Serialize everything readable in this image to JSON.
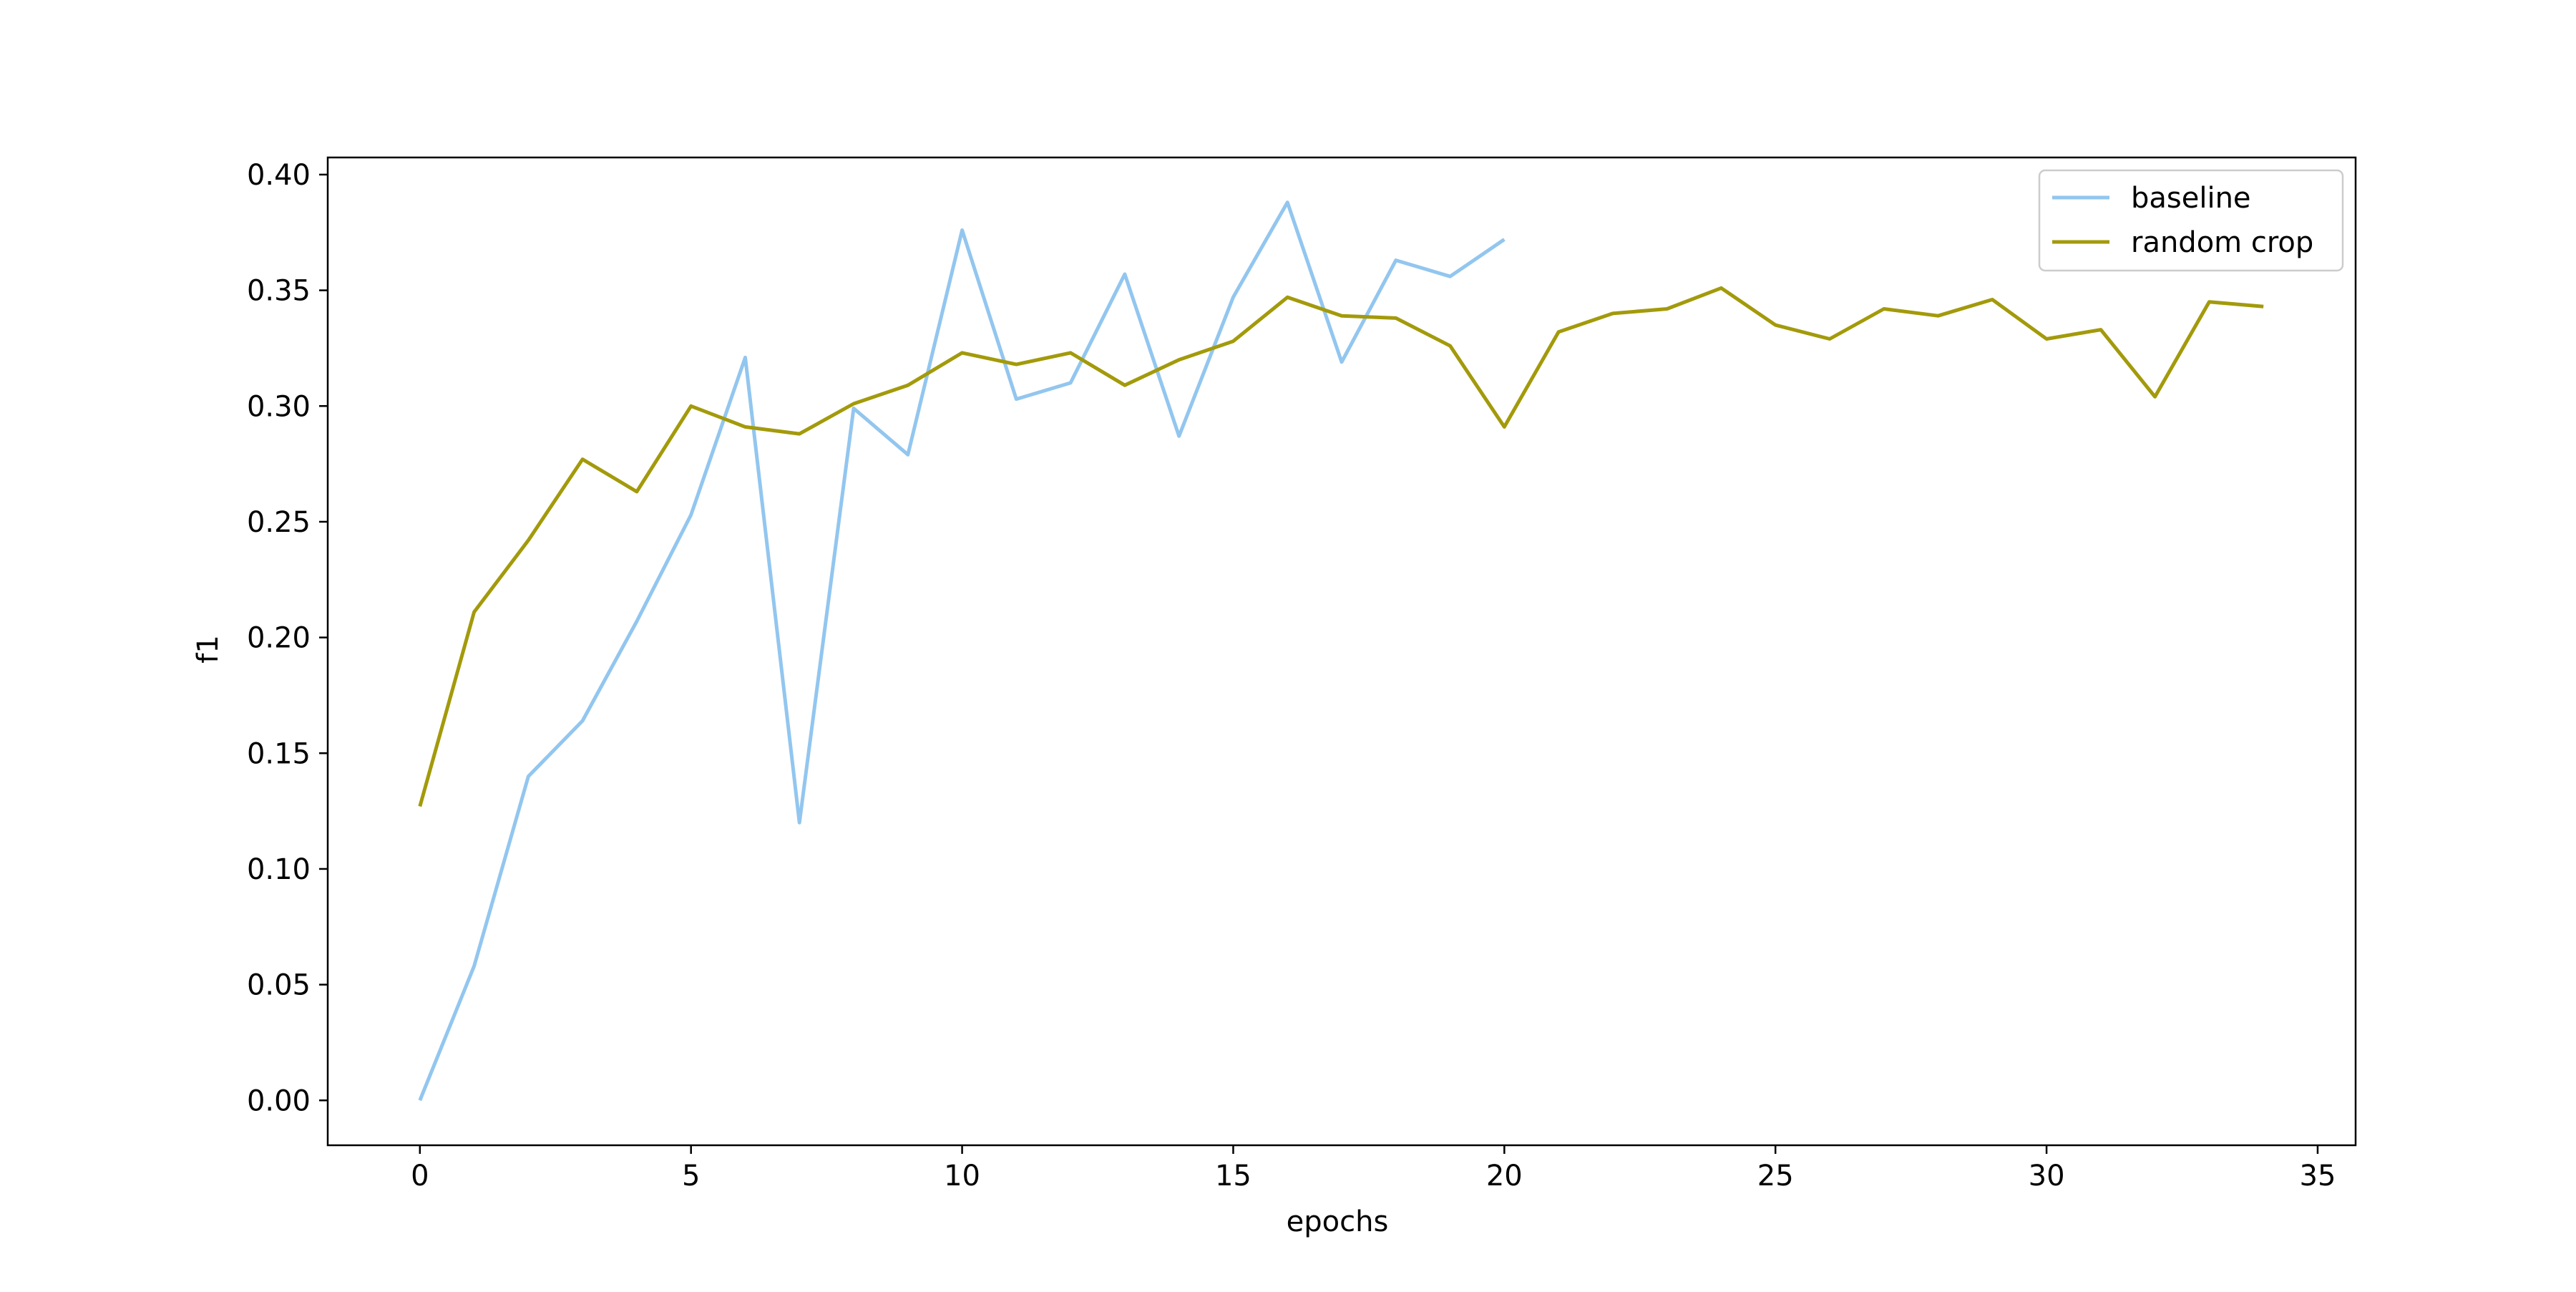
{
  "chart_data": {
    "type": "line",
    "title": "",
    "xlabel": "epochs",
    "ylabel": "f1",
    "xlim": [
      -1.7,
      35.7
    ],
    "ylim": [
      -0.0194,
      0.4074
    ],
    "xticks": [
      0,
      5,
      10,
      15,
      20,
      25,
      30,
      35
    ],
    "yticks": [
      0.0,
      0.05,
      0.1,
      0.15,
      0.2,
      0.25,
      0.3,
      0.35,
      0.4
    ],
    "xtick_labels": [
      "0",
      "5",
      "10",
      "15",
      "20",
      "25",
      "30",
      "35"
    ],
    "ytick_labels": [
      "0.00",
      "0.05",
      "0.10",
      "0.15",
      "0.20",
      "0.25",
      "0.30",
      "0.35",
      "0.40"
    ],
    "grid": false,
    "legend_position": "top-right",
    "series": [
      {
        "name": "baseline",
        "color": "#92c6ef",
        "x": [
          0,
          1,
          2,
          3,
          4,
          5,
          6,
          7,
          8,
          9,
          10,
          11,
          12,
          13,
          14,
          15,
          16,
          17,
          18,
          19,
          20
        ],
        "y": [
          0.0,
          0.058,
          0.14,
          0.164,
          0.207,
          0.253,
          0.321,
          0.12,
          0.299,
          0.279,
          0.376,
          0.303,
          0.31,
          0.357,
          0.287,
          0.347,
          0.388,
          0.319,
          0.363,
          0.356,
          0.372
        ]
      },
      {
        "name": "random crop",
        "color": "#a39a0b",
        "x": [
          0,
          1,
          2,
          3,
          4,
          5,
          6,
          7,
          8,
          9,
          10,
          11,
          12,
          13,
          14,
          15,
          16,
          17,
          18,
          19,
          20,
          21,
          22,
          23,
          24,
          25,
          26,
          27,
          28,
          29,
          30,
          31,
          32,
          33,
          34
        ],
        "y": [
          0.127,
          0.211,
          0.242,
          0.277,
          0.263,
          0.3,
          0.291,
          0.288,
          0.301,
          0.309,
          0.323,
          0.318,
          0.323,
          0.309,
          0.32,
          0.328,
          0.347,
          0.339,
          0.338,
          0.326,
          0.291,
          0.332,
          0.34,
          0.342,
          0.351,
          0.335,
          0.329,
          0.342,
          0.339,
          0.346,
          0.329,
          0.333,
          0.304,
          0.345,
          0.343
        ]
      }
    ]
  }
}
